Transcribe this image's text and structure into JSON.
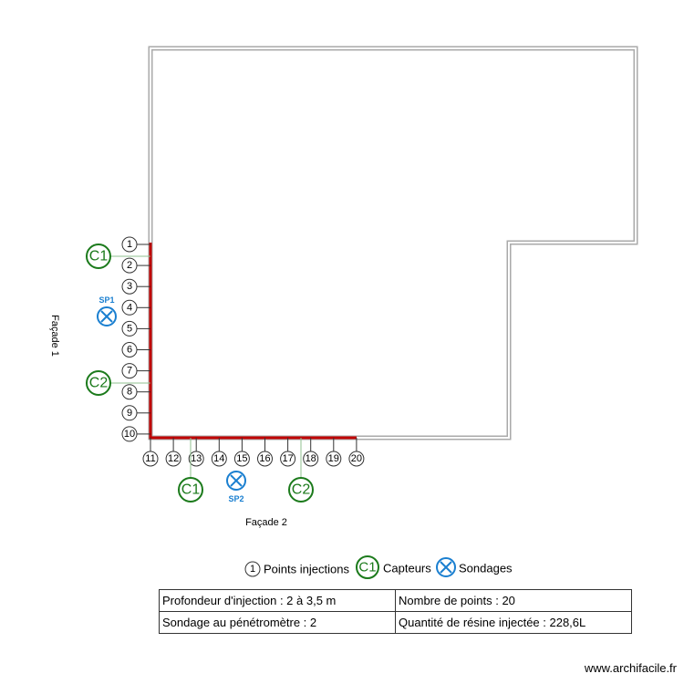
{
  "facade1": {
    "label": "Façade 1",
    "points": [
      "1",
      "2",
      "3",
      "4",
      "5",
      "6",
      "7",
      "8",
      "9",
      "10"
    ],
    "sensors": [
      "C1",
      "C2"
    ],
    "sondage": "SP1"
  },
  "facade2": {
    "label": "Façade 2",
    "points": [
      "11",
      "12",
      "13",
      "14",
      "15",
      "16",
      "17",
      "18",
      "19",
      "20"
    ],
    "sensors": [
      "C1",
      "C2"
    ],
    "sondage": "SP2"
  },
  "legend": {
    "injection": {
      "symbol": "1",
      "label": "Points injections"
    },
    "capteur": {
      "symbol": "C1",
      "label": "Capteurs"
    },
    "sondage": {
      "label": "Sondages"
    }
  },
  "table": {
    "rows": [
      [
        "Profondeur d'injection : 2 à 3,5 m",
        "Nombre de points : 20"
      ],
      [
        "Sondage au pénétromètre : 2",
        "Quantité de résine injectée : 228,6L"
      ]
    ]
  },
  "watermark": "www.archifacile.fr"
}
